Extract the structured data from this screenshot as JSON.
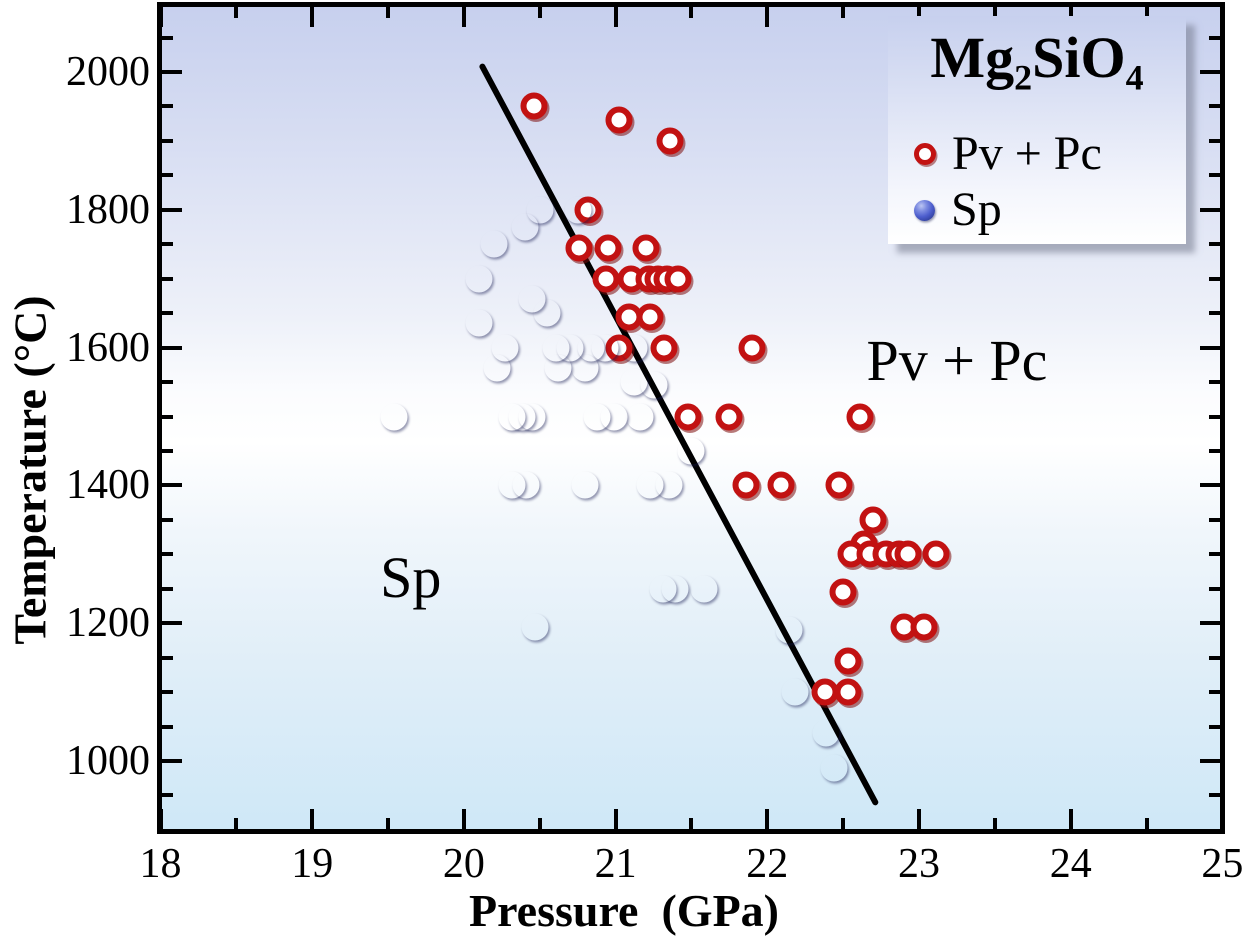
{
  "legend": {
    "title_plain": "Mg2SiO4",
    "title_parts": [
      {
        "text": "Mg"
      },
      {
        "text": "2",
        "sub": true
      },
      {
        "text": "SiO"
      },
      {
        "text": "4",
        "sub": true
      }
    ],
    "items": [
      {
        "id": "pv",
        "label": "Pv + Pc",
        "marker": "open-red-circle"
      },
      {
        "id": "sp",
        "label": "Sp",
        "marker": "filled-blue-sphere"
      }
    ]
  },
  "chart_data": {
    "type": "scatter",
    "title": "Mg2SiO4",
    "xlabel": "Pressure  (GPa)",
    "ylabel": "Temperature (°C)",
    "xlim": [
      18,
      25
    ],
    "ylim": [
      900,
      2090
    ],
    "x_major_ticks": [
      18,
      19,
      20,
      21,
      22,
      23,
      24,
      25
    ],
    "x_minor_ticks": [
      18.5,
      19.5,
      20.5,
      21.5,
      22.5,
      23.5,
      24.5
    ],
    "y_major_ticks": [
      1000,
      1200,
      1400,
      1600,
      1800,
      2000
    ],
    "y_minor_step": 50,
    "grid": false,
    "legend_position": "top-right",
    "background_gradient": [
      "#c7d0ee",
      "#ffffff",
      "#cfe8f7"
    ],
    "series": [
      {
        "id": "pv",
        "name": "Pv + Pc",
        "marker": "open-red-circle",
        "color": "#c21212",
        "points": [
          [
            20.46,
            1950
          ],
          [
            21.02,
            1930
          ],
          [
            21.36,
            1900
          ],
          [
            20.82,
            1800
          ],
          [
            20.76,
            1745
          ],
          [
            20.95,
            1745
          ],
          [
            21.2,
            1745
          ],
          [
            20.94,
            1700
          ],
          [
            21.1,
            1700
          ],
          [
            21.22,
            1700
          ],
          [
            21.28,
            1700
          ],
          [
            21.34,
            1700
          ],
          [
            21.41,
            1700
          ],
          [
            21.09,
            1645
          ],
          [
            21.23,
            1645
          ],
          [
            21.02,
            1600
          ],
          [
            21.32,
            1600
          ],
          [
            21.9,
            1600
          ],
          [
            21.48,
            1500
          ],
          [
            21.75,
            1500
          ],
          [
            22.61,
            1500
          ],
          [
            21.86,
            1400
          ],
          [
            22.09,
            1400
          ],
          [
            22.47,
            1400
          ],
          [
            22.7,
            1350
          ],
          [
            22.64,
            1315
          ],
          [
            22.55,
            1300
          ],
          [
            22.68,
            1300
          ],
          [
            22.78,
            1300
          ],
          [
            22.87,
            1300
          ],
          [
            22.93,
            1300
          ],
          [
            23.11,
            1300
          ],
          [
            22.5,
            1245
          ],
          [
            22.9,
            1195
          ],
          [
            23.03,
            1195
          ],
          [
            22.53,
            1145
          ],
          [
            22.38,
            1100
          ],
          [
            22.53,
            1100
          ]
        ]
      },
      {
        "id": "sp",
        "name": "Sp",
        "marker": "filled-blue-sphere",
        "color": "#3c4ec0",
        "points": [
          [
            20.5,
            1800
          ],
          [
            20.75,
            1800
          ],
          [
            20.4,
            1775
          ],
          [
            20.2,
            1750
          ],
          [
            20.1,
            1700
          ],
          [
            20.45,
            1670
          ],
          [
            20.55,
            1650
          ],
          [
            20.1,
            1635
          ],
          [
            20.27,
            1600
          ],
          [
            20.61,
            1600
          ],
          [
            20.7,
            1600
          ],
          [
            20.84,
            1600
          ],
          [
            20.93,
            1600
          ],
          [
            21.12,
            1600
          ],
          [
            20.22,
            1570
          ],
          [
            20.62,
            1570
          ],
          [
            20.8,
            1570
          ],
          [
            21.12,
            1550
          ],
          [
            21.25,
            1545
          ],
          [
            19.54,
            1500
          ],
          [
            20.32,
            1500
          ],
          [
            20.38,
            1500
          ],
          [
            20.45,
            1500
          ],
          [
            20.88,
            1500
          ],
          [
            20.99,
            1500
          ],
          [
            21.16,
            1500
          ],
          [
            21.5,
            1450
          ],
          [
            20.32,
            1400
          ],
          [
            20.41,
            1400
          ],
          [
            20.8,
            1400
          ],
          [
            21.23,
            1400
          ],
          [
            21.35,
            1400
          ],
          [
            21.31,
            1250
          ],
          [
            21.39,
            1250
          ],
          [
            21.58,
            1250
          ],
          [
            20.47,
            1195
          ],
          [
            22.14,
            1190
          ],
          [
            22.18,
            1100
          ],
          [
            22.39,
            1040
          ],
          [
            22.44,
            990
          ]
        ]
      }
    ],
    "boundary_line": {
      "color": "#000000",
      "points": [
        [
          20.11,
          2012
        ],
        [
          22.72,
          936
        ]
      ]
    },
    "region_labels": [
      {
        "text": "Pv + Pc",
        "x": 23.25,
        "y": 1580
      },
      {
        "text": "Sp",
        "x": 19.65,
        "y": 1265
      }
    ]
  }
}
